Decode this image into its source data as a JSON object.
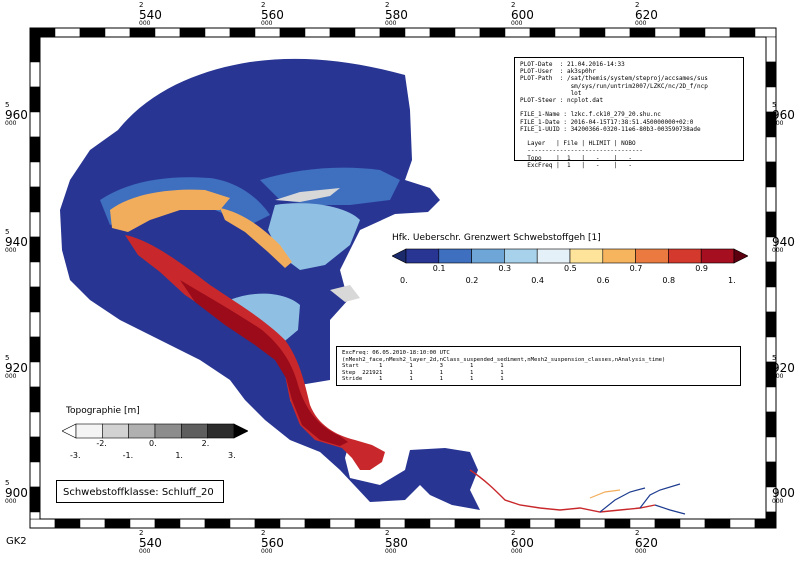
{
  "projection_label": "GK2",
  "x_axis": {
    "prefix": "2",
    "suffix": "000",
    "ticks": [
      "540",
      "560",
      "580",
      "600",
      "620"
    ]
  },
  "y_axis": {
    "prefix": "5",
    "suffix": "000",
    "ticks": [
      "960",
      "940",
      "920",
      "900"
    ]
  },
  "plot_info": {
    "lines": [
      "PLOT-Date  : 21.04.2016-14:33",
      "PLOT-User  : ak3sp0hr",
      "PLOT-Path  : /sat/themis/system/steproj/accsames/sus",
      "              sm/sys/run/untrim2007/LZKC/nc/2D_f/ncp",
      "              lot",
      "PLOT-Steer : ncplot.dat",
      "",
      "FILE_1-Name : lzkc.f.ck10_279_20.shu.nc",
      "FILE_1-Date : 2016-04-15T17:38:51.450000000+02:0",
      "FILE_1-UUID : 34200366-0320-11e6-80b3-003590738ade",
      "",
      "  Layer   | File | HLIMIT | NOBO",
      "  --------------------------------",
      "  Topo    |  1   |   -    |   -",
      "  ExcFreq |  1   |   -    |   -"
    ]
  },
  "run_info": {
    "lines": [
      "ExcFreq: 06.05.2010-18:10:00 UTC",
      "(nMesh2_face,nMesh2_layer_2d,nClass_suspended_sediment,nMesh2_suspension_classes,nAnalysis_time)",
      "Start      1        1        3        1        1",
      "Step  221921        1        1        1        1",
      "Stride     1        1        1        1        1"
    ]
  },
  "exceedance_legend": {
    "title": "Hfk. Ueberschr. Grenzwert Schwebstoffgeh [1]",
    "upper_labels": [
      "0.1",
      "0.3",
      "0.5",
      "0.7",
      "0.9"
    ],
    "lower_labels": [
      "0.",
      "0.2",
      "0.4",
      "0.6",
      "0.8",
      "1."
    ],
    "colors": [
      "#283593",
      "#3f6fbf",
      "#6ea6d8",
      "#a8d2ec",
      "#e4f1f8",
      "#fde49a",
      "#f6b45f",
      "#ea7a3f",
      "#d33a2d",
      "#a50f1f"
    ],
    "end_low": "#1b2a6a",
    "end_high": "#5c0010"
  },
  "topography_legend": {
    "title": "Topographie [m]",
    "upper_labels": [
      "-2.",
      "0.",
      "2."
    ],
    "lower_labels": [
      "-3.",
      "-1.",
      "1.",
      "3."
    ],
    "colors": [
      "#f4f4f4",
      "#d2d2d2",
      "#b0b0b0",
      "#8c8c8c",
      "#5e5e5e",
      "#2c2c2c"
    ],
    "end_low": "#ffffff",
    "end_high": "#000000"
  },
  "sediment_class_label": "Schwebstoffklasse: Schluff_20",
  "map_colors": {
    "deep_blue": "#283593",
    "mid_blue": "#3f6fbf",
    "light_blue": "#8fc0e3",
    "orange": "#f2ad5c",
    "red": "#c8282b",
    "dark_red": "#9b0b1a",
    "land_grey": "#d8d8d8"
  }
}
